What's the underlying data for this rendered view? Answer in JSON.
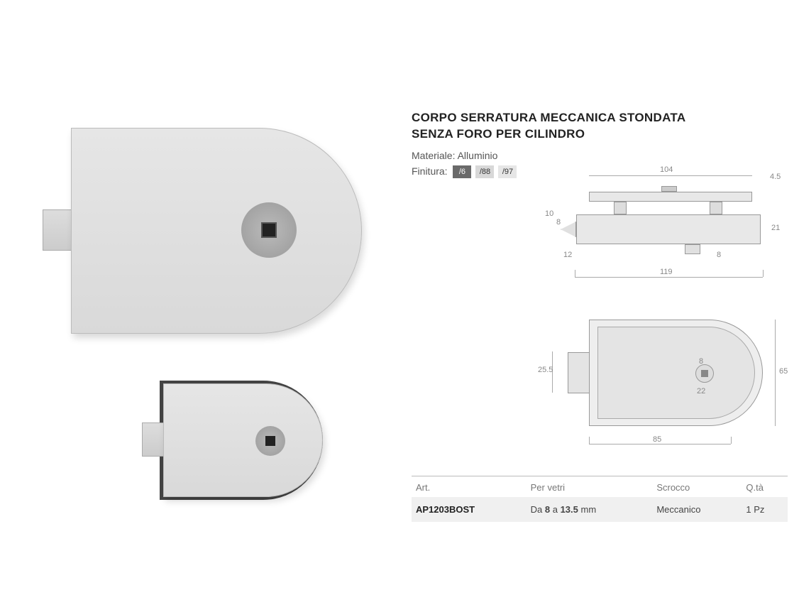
{
  "title_line1": "CORPO SERRATURA MECCANICA STONDATA",
  "title_line2": "SENZA FORO PER CILINDRO",
  "material_label": "Materiale:",
  "material_value": "Alluminio",
  "finish_label": "Finitura:",
  "finishes": [
    {
      "code": "/6",
      "bg": "#6a6a6a",
      "text_light": false
    },
    {
      "code": "/88",
      "bg": "#d8d8d8",
      "text_light": true
    },
    {
      "code": "/97",
      "bg": "#e6e6e6",
      "text_light": true
    }
  ],
  "dimensions": {
    "top_width": "104",
    "top_thk": "4.5",
    "side_h1": "10",
    "side_h2": "8",
    "side_h3": "12",
    "body_h": "21",
    "stub_h": "8",
    "total_w": "119",
    "front_latch_h": "25.5",
    "front_hub": "8",
    "front_hub_w": "22",
    "front_body_w": "85",
    "front_body_h": "65"
  },
  "table": {
    "headers": [
      "Art.",
      "Per vetri",
      "Scrocco",
      "Q.tà"
    ],
    "row": {
      "art": "AP1203BOST",
      "glass_prefix": "Da ",
      "glass_min": "8",
      "glass_mid": " a ",
      "glass_max": "13.5",
      "glass_unit": " mm",
      "latch": "Meccanico",
      "qty": "1 Pz"
    }
  },
  "colors": {
    "bg": "#ffffff",
    "text": "#333333",
    "muted": "#777777",
    "line": "#aaaaaa",
    "row_bg": "#f0f0f0"
  }
}
